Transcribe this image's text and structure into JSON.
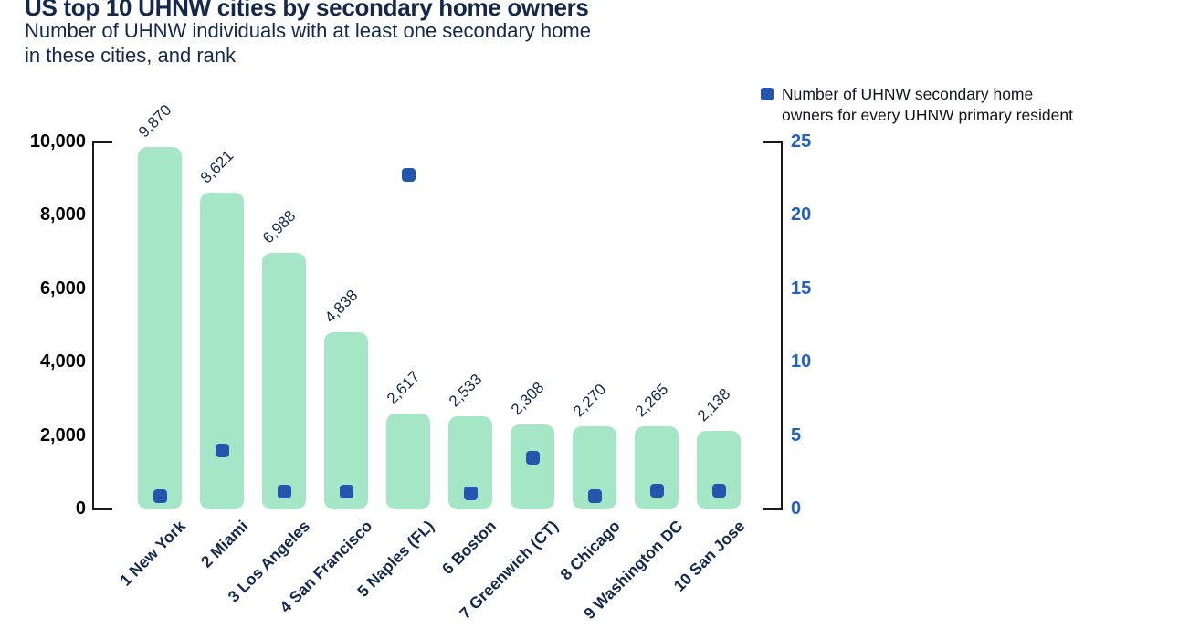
{
  "header": {
    "title": "US top 10 UHNW cities by secondary home owners",
    "subtitle": "Number of UHNW individuals with at least one secondary home\nin these cities, and rank"
  },
  "legend": {
    "swatch": "blue-square-icon",
    "label": "Number of UHNW secondary home\nowners for every UHNW primary resident"
  },
  "colors": {
    "navy_text": "#13294f",
    "bar_green": "#a5e6c6",
    "marker_blue": "#2456b0",
    "right_axis_blue": "#2160c4",
    "left_axis_black": "#000000",
    "axis_line": "#1a1a1a",
    "legend_text": "#121417"
  },
  "chart_data": {
    "type": "bar",
    "title": "US top 10 UHNW cities by secondary home owners",
    "subtitle": "Number of UHNW individuals with at least one secondary home in these cities, and rank",
    "categories": [
      "1 New York",
      "2 Miami",
      "3 Los Angeles",
      "4 San Francisco",
      "5 Naples (FL)",
      "6 Boston",
      "7 Greenwich (CT)",
      "8 Chicago",
      "9 Washington DC",
      "10 San Jose"
    ],
    "series": [
      {
        "name": "Number of UHNW individuals with at least one secondary home",
        "type": "bar",
        "axis": "left",
        "values": [
          9870,
          8621,
          6988,
          4838,
          2617,
          2533,
          2308,
          2270,
          2265,
          2138
        ],
        "labels": [
          "9,870",
          "8,621",
          "6,988",
          "4,838",
          "2,617",
          "2,533",
          "2,308",
          "2,270",
          "2,265",
          "2,138"
        ]
      },
      {
        "name": "Number of UHNW secondary home owners for every UHNW primary resident",
        "type": "scatter",
        "marker": "square",
        "axis": "right",
        "values": [
          0.9,
          4.0,
          1.2,
          1.2,
          22.8,
          1.1,
          3.5,
          0.9,
          1.3,
          1.3
        ]
      }
    ],
    "left_axis": {
      "range": [
        0,
        10000
      ],
      "ticks": [
        {
          "value": 0,
          "label": "0"
        },
        {
          "value": 2000,
          "label": "2,000"
        },
        {
          "value": 4000,
          "label": "4,000"
        },
        {
          "value": 6000,
          "label": "6,000"
        },
        {
          "value": 8000,
          "label": "8,000"
        },
        {
          "value": 10000,
          "label": "10,000"
        }
      ]
    },
    "right_axis": {
      "range": [
        0,
        25
      ],
      "ticks": [
        {
          "value": 0,
          "label": "0"
        },
        {
          "value": 5,
          "label": "5"
        },
        {
          "value": 10,
          "label": "10"
        },
        {
          "value": 15,
          "label": "15"
        },
        {
          "value": 20,
          "label": "20"
        },
        {
          "value": 25,
          "label": "25"
        }
      ]
    },
    "grid": false,
    "legend_position": "top-right",
    "bar_label_rotation": -45,
    "x_label_rotation": -45
  }
}
